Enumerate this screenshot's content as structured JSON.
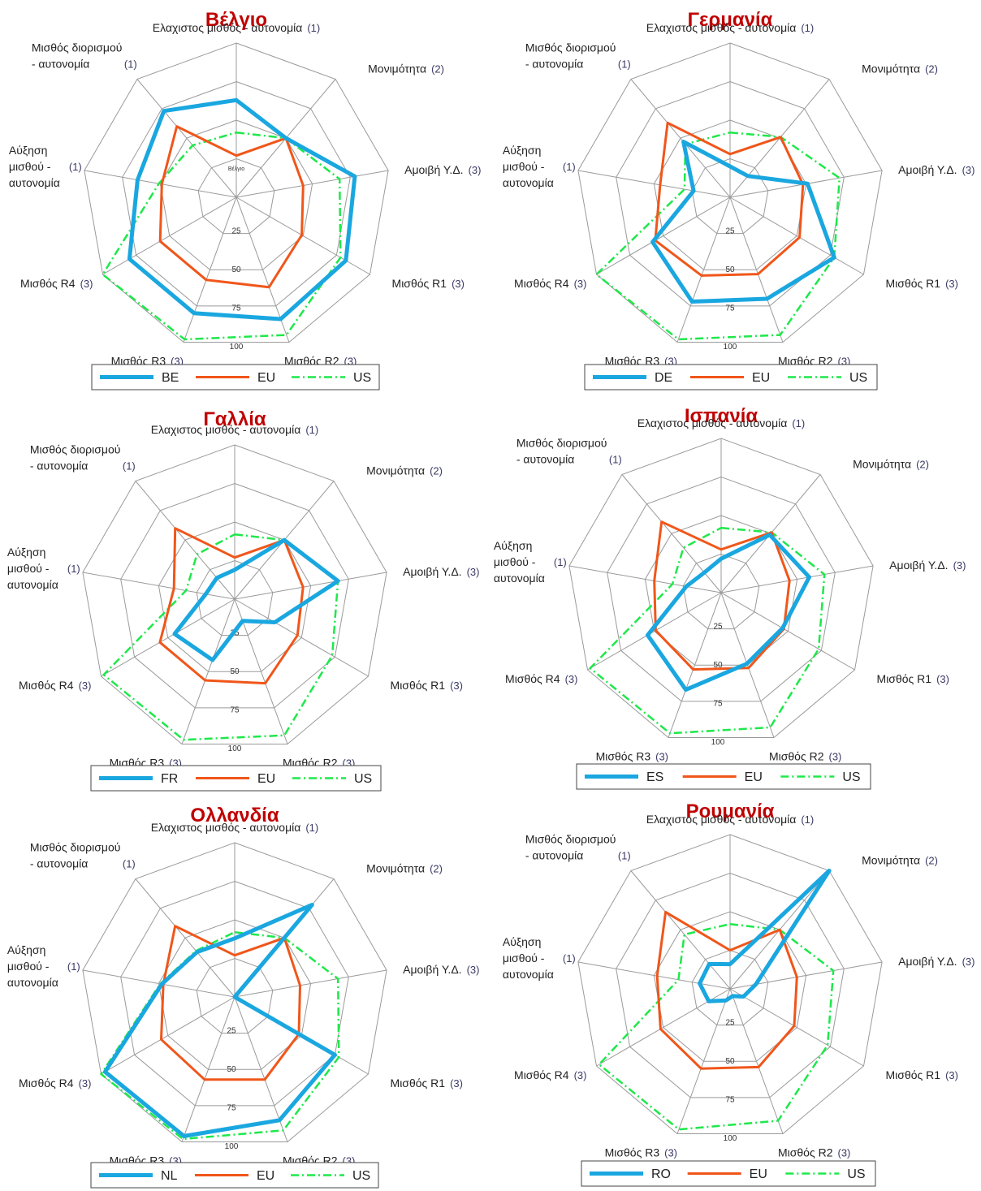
{
  "colors": {
    "country": "#1aa7e0",
    "eu": "#f0561a",
    "us": "#1ee84a",
    "grid": "#9a9a9a",
    "title": "#c00000"
  },
  "axis_labels": [
    {
      "text": [
        "Ελαχιστος μισθός - αυτονομία"
      ],
      "num": "(1)"
    },
    {
      "text": [
        "Μονιμότητα"
      ],
      "num": "(2)"
    },
    {
      "text": [
        "Αμοιβή Υ.Δ."
      ],
      "num": "(3)"
    },
    {
      "text": [
        "Μισθός R1"
      ],
      "num": "(3)"
    },
    {
      "text": [
        "Μισθός R2"
      ],
      "num": "(3)"
    },
    {
      "text": [
        "Μισθός R3"
      ],
      "num": "(3)"
    },
    {
      "text": [
        "Μισθός R4"
      ],
      "num": "(3)"
    },
    {
      "text": [
        "Αύξηση",
        "μισθού -",
        "αυτονομία"
      ],
      "num": "(1)"
    },
    {
      "text": [
        "Μισθός διορισμού",
        "- αυτονομία"
      ],
      "num": "(1)"
    }
  ],
  "chart_data": [
    {
      "type": "radar",
      "title": "Βέλγιο",
      "center_label": "Βέλγιο",
      "axes": [
        "Ελαχιστος μισθός - αυτονομία (1)",
        "Μονιμότητα (2)",
        "Αμοιβή Υ.Δ. (3)",
        "Μισθός R1 (3)",
        "Μισθός R2 (3)",
        "Μισθός R3 (3)",
        "Μισθός R4 (3)",
        "Αύξηση μισθού - αυτονομία (1)",
        "Μισθός διορισμού - αυτονομία (1)"
      ],
      "ticks": [
        25,
        50,
        75,
        100
      ],
      "range": [
        0,
        100
      ],
      "series": [
        {
          "name": "BE",
          "values": [
            63,
            50,
            78,
            82,
            84,
            80,
            80,
            65,
            73
          ]
        },
        {
          "name": "EU",
          "values": [
            27,
            50,
            44,
            49,
            62,
            57,
            57,
            49,
            60
          ]
        },
        {
          "name": "US",
          "values": [
            42,
            50,
            68,
            78,
            95,
            98,
            100,
            51,
            44
          ]
        }
      ]
    },
    {
      "type": "radar",
      "title": "Γερμανία",
      "axes": [
        "Ελαχιστος μισθός - αυτονομία (1)",
        "Μονιμότητα (2)",
        "Αμοιβή Υ.Δ. (3)",
        "Μισθός R1 (3)",
        "Μισθός R2 (3)",
        "Μισθός R3 (3)",
        "Μισθός R4 (3)",
        "Αύξηση μισθού - αυτονομία (1)",
        "Μισθός διορισμού - αυτονομία (1)"
      ],
      "ticks": [
        25,
        50,
        75,
        100
      ],
      "range": [
        0,
        100
      ],
      "series": [
        {
          "name": "DE",
          "values": [
            20,
            18,
            51,
            78,
            70,
            72,
            58,
            24,
            47
          ]
        },
        {
          "name": "EU",
          "values": [
            28,
            51,
            48,
            52,
            53,
            54,
            56,
            46,
            63
          ]
        },
        {
          "name": "US",
          "values": [
            42,
            51,
            72,
            78,
            95,
            98,
            100,
            30,
            45
          ]
        }
      ]
    },
    {
      "type": "radar",
      "title": "Γαλλία",
      "axes": [
        "Ελαχιστος μισθός - αυτονομία (1)",
        "Μονιμότητα (2)",
        "Αμοιβή Υ.Δ. (3)",
        "Μισθός R1 (3)",
        "Μισθός R2 (3)",
        "Μισθός R3 (3)",
        "Μισθός R4 (3)",
        "Αύξηση μισθού - αυτονομία (1)",
        "Μισθός διορισμού - αυτονομία (1)"
      ],
      "ticks": [
        25,
        50,
        75,
        100
      ],
      "range": [
        0,
        100
      ],
      "series": [
        {
          "name": "FR",
          "values": [
            19,
            50,
            68,
            30,
            15,
            42,
            45,
            19,
            18
          ]
        },
        {
          "name": "EU",
          "values": [
            27,
            50,
            45,
            47,
            58,
            56,
            56,
            40,
            60
          ]
        },
        {
          "name": "US",
          "values": [
            42,
            50,
            68,
            73,
            94,
            97,
            98,
            32,
            38
          ]
        }
      ]
    },
    {
      "type": "radar",
      "title": "Ισπανία",
      "axes": [
        "Ελαχιστος μισθός - αυτονομία (1)",
        "Μονιμότητα (2)",
        "Αμοιβή Υ.Δ. (3)",
        "Μισθός R1 (3)",
        "Μισθός R2 (3)",
        "Μισθός R3 (3)",
        "Μισθός R4 (3)",
        "Αύξηση μισθού - αυτονομία (1)",
        "Μισθός διορισμού - αυτονομία (1)"
      ],
      "ticks": [
        25,
        50,
        75,
        100
      ],
      "range": [
        0,
        100
      ],
      "series": [
        {
          "name": "ES",
          "values": [
            22,
            49,
            58,
            46,
            49,
            67,
            55,
            23,
            17
          ]
        },
        {
          "name": "EU",
          "values": [
            28,
            51,
            45,
            47,
            52,
            53,
            49,
            44,
            60
          ]
        },
        {
          "name": "US",
          "values": [
            42,
            51,
            68,
            73,
            93,
            97,
            98,
            32,
            38
          ]
        }
      ]
    },
    {
      "type": "radar",
      "title": "Ολλανδία",
      "axes": [
        "Ελαχιστος μισθός - αυτονομία (1)",
        "Μονιμότητα (2)",
        "Αμοιβή Υ.Δ. (3)",
        "Μισθός R1 (3)",
        "Μισθός R2 (3)",
        "Μισθός R3 (3)",
        "Μισθός R4 (3)",
        "Αύξηση μισθού - αυτονομία (1)",
        "Μισθός διορισμού - αυτονομία (1)"
      ],
      "ticks": [
        25,
        50,
        75,
        100
      ],
      "range": [
        0,
        100
      ],
      "series": [
        {
          "name": "NL",
          "values": [
            38,
            78,
            0,
            75,
            85,
            96,
            97,
            48,
            38
          ]
        },
        {
          "name": "EU",
          "values": [
            27,
            50,
            43,
            48,
            57,
            57,
            55,
            47,
            60
          ]
        },
        {
          "name": "US",
          "values": [
            42,
            50,
            68,
            78,
            92,
            98,
            100,
            49,
            39
          ]
        }
      ]
    },
    {
      "type": "radar",
      "title": "Ρουμανία",
      "axes": [
        "Ελαχιστος μισθός - αυτονομία (1)",
        "Μονιμότητα (2)",
        "Αμοιβή Υ.Δ. (3)",
        "Μισθός R1 (3)",
        "Μισθός R2 (3)",
        "Μισθός R3 (3)",
        "Μισθός R4 (3)",
        "Αύξηση μισθού - αυτονομία (1)",
        "Μισθός διορισμού - αυτονομία (1)"
      ],
      "ticks": [
        25,
        50,
        75,
        100
      ],
      "range": [
        0,
        100
      ],
      "series": [
        {
          "name": "RO",
          "values": [
            16,
            100,
            17,
            10,
            5,
            8,
            16,
            20,
            21
          ]
        },
        {
          "name": "EU",
          "values": [
            25,
            50,
            44,
            48,
            54,
            55,
            52,
            48,
            65
          ]
        },
        {
          "name": "US",
          "values": [
            42,
            50,
            68,
            73,
            91,
            97,
            98,
            34,
            46
          ]
        }
      ]
    }
  ]
}
